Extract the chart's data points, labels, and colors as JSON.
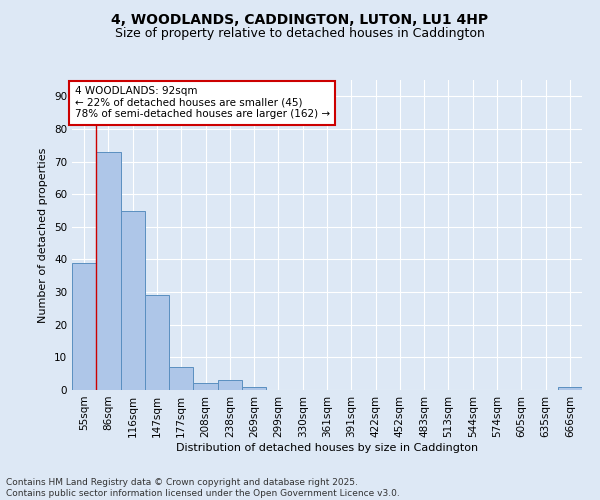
{
  "title_line1": "4, WOODLANDS, CADDINGTON, LUTON, LU1 4HP",
  "title_line2": "Size of property relative to detached houses in Caddington",
  "xlabel": "Distribution of detached houses by size in Caddington",
  "ylabel": "Number of detached properties",
  "categories": [
    "55sqm",
    "86sqm",
    "116sqm",
    "147sqm",
    "177sqm",
    "208sqm",
    "238sqm",
    "269sqm",
    "299sqm",
    "330sqm",
    "361sqm",
    "391sqm",
    "422sqm",
    "452sqm",
    "483sqm",
    "513sqm",
    "544sqm",
    "574sqm",
    "605sqm",
    "635sqm",
    "666sqm"
  ],
  "values": [
    39,
    73,
    55,
    29,
    7,
    2,
    3,
    1,
    0,
    0,
    0,
    0,
    0,
    0,
    0,
    0,
    0,
    0,
    0,
    0,
    1
  ],
  "bar_color": "#aec6e8",
  "bar_edge_color": "#5a8fc0",
  "annotation_box_text": "4 WOODLANDS: 92sqm\n← 22% of detached houses are smaller (45)\n78% of semi-detached houses are larger (162) →",
  "annotation_box_color": "#ffffff",
  "annotation_box_edge_color": "#cc0000",
  "marker_line_color": "#cc0000",
  "marker_bar_index": 1,
  "ylim": [
    0,
    95
  ],
  "yticks": [
    0,
    10,
    20,
    30,
    40,
    50,
    60,
    70,
    80,
    90
  ],
  "footnote": "Contains HM Land Registry data © Crown copyright and database right 2025.\nContains public sector information licensed under the Open Government Licence v3.0.",
  "background_color": "#dde8f5",
  "plot_bg_color": "#dde8f5",
  "grid_color": "#ffffff",
  "title_fontsize": 10,
  "subtitle_fontsize": 9,
  "axis_label_fontsize": 8,
  "tick_fontsize": 7.5,
  "annotation_fontsize": 7.5,
  "footnote_fontsize": 6.5
}
